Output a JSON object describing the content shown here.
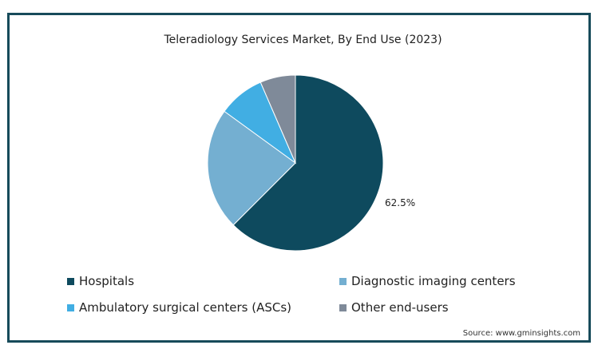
{
  "chart_data": {
    "type": "pie",
    "title": "Teleradiology Services Market, By End Use (2023)",
    "slices": [
      {
        "name": "Hospitals",
        "value": 62.5,
        "color": "#0e4a5e",
        "label": "62.5%"
      },
      {
        "name": "Diagnostic imaging centers",
        "value": 22.5,
        "color": "#74afd1",
        "label": ""
      },
      {
        "name": "Ambulatory surgical centers (ASCs)",
        "value": 8.5,
        "color": "#41aee3",
        "label": ""
      },
      {
        "name": "Other end-users",
        "value": 6.5,
        "color": "#7f8a99",
        "label": ""
      }
    ],
    "legend_position": "bottom"
  },
  "source": "Source: www.gminsights.com"
}
